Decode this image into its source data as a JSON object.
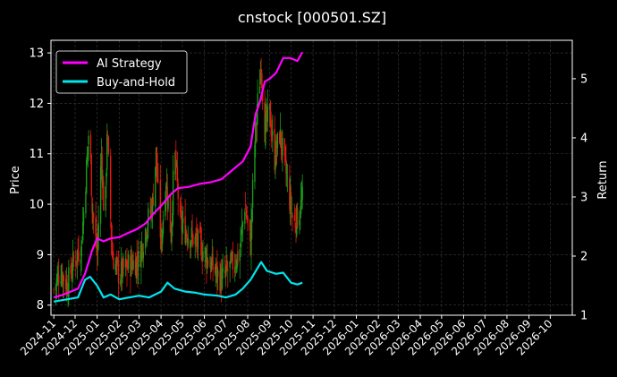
{
  "chart_data": {
    "type": "line",
    "title": "cnstock [000501.SZ]",
    "ylabel_left": "Price",
    "ylabel_right": "Return",
    "xlim": [
      "2024-10-28",
      "2026-11-01"
    ],
    "ylim_left": [
      7.8,
      13.25
    ],
    "ylim_right": [
      1.0,
      5.65
    ],
    "left_ticks": [
      8,
      9,
      10,
      11,
      12,
      13
    ],
    "right_ticks": [
      1,
      2,
      3,
      4,
      5
    ],
    "x_ticks": [
      "2024-11",
      "2024-12",
      "2025-01",
      "2025-02",
      "2025-03",
      "2025-04",
      "2025-05",
      "2025-06",
      "2025-07",
      "2025-08",
      "2025-09",
      "2025-10",
      "2025-11",
      "2025-12",
      "2026-01",
      "2026-02",
      "2026-03",
      "2026-04",
      "2026-05",
      "2026-06",
      "2026-07",
      "2026-08",
      "2026-09",
      "2026-10"
    ],
    "grid": true,
    "legend_position": "top-left",
    "colors": {
      "background": "#000000",
      "ai_strategy": "#ff00ff",
      "buy_and_hold": "#00e5ee",
      "candle_up": "#1a9a1a",
      "candle_down": "#e01a10",
      "grid": "#3a3a3a"
    },
    "series": [
      {
        "name": "AI Strategy",
        "axis": "right",
        "points": [
          [
            "2024-11-01",
            1.3
          ],
          [
            "2024-11-15",
            1.35
          ],
          [
            "2024-11-25",
            1.4
          ],
          [
            "2024-12-05",
            1.45
          ],
          [
            "2024-12-15",
            1.7
          ],
          [
            "2024-12-25",
            2.1
          ],
          [
            "2025-01-01",
            2.3
          ],
          [
            "2025-01-10",
            2.25
          ],
          [
            "2025-01-20",
            2.3
          ],
          [
            "2025-02-01",
            2.32
          ],
          [
            "2025-02-15",
            2.4
          ],
          [
            "2025-02-25",
            2.45
          ],
          [
            "2025-03-10",
            2.55
          ],
          [
            "2025-03-20",
            2.7
          ],
          [
            "2025-04-01",
            2.85
          ],
          [
            "2025-04-15",
            3.05
          ],
          [
            "2025-04-25",
            3.15
          ],
          [
            "2025-05-10",
            3.17
          ],
          [
            "2025-05-25",
            3.22
          ],
          [
            "2025-06-10",
            3.25
          ],
          [
            "2025-06-25",
            3.3
          ],
          [
            "2025-07-05",
            3.4
          ],
          [
            "2025-07-15",
            3.5
          ],
          [
            "2025-07-25",
            3.6
          ],
          [
            "2025-08-05",
            3.85
          ],
          [
            "2025-08-12",
            4.4
          ],
          [
            "2025-08-18",
            4.6
          ],
          [
            "2025-08-25",
            4.95
          ],
          [
            "2025-09-01",
            5.0
          ],
          [
            "2025-09-10",
            5.1
          ],
          [
            "2025-09-20",
            5.35
          ],
          [
            "2025-09-30",
            5.35
          ],
          [
            "2025-10-10",
            5.3
          ],
          [
            "2025-10-17",
            5.45
          ]
        ]
      },
      {
        "name": "Buy-and-Hold",
        "axis": "right",
        "points": [
          [
            "2024-11-01",
            1.23
          ],
          [
            "2024-11-20",
            1.27
          ],
          [
            "2024-12-05",
            1.3
          ],
          [
            "2024-12-15",
            1.6
          ],
          [
            "2024-12-22",
            1.65
          ],
          [
            "2025-01-01",
            1.5
          ],
          [
            "2025-01-10",
            1.3
          ],
          [
            "2025-01-20",
            1.35
          ],
          [
            "2025-02-01",
            1.27
          ],
          [
            "2025-02-15",
            1.3
          ],
          [
            "2025-03-01",
            1.33
          ],
          [
            "2025-03-15",
            1.3
          ],
          [
            "2025-04-01",
            1.4
          ],
          [
            "2025-04-10",
            1.55
          ],
          [
            "2025-04-20",
            1.45
          ],
          [
            "2025-05-05",
            1.4
          ],
          [
            "2025-05-20",
            1.38
          ],
          [
            "2025-06-01",
            1.35
          ],
          [
            "2025-06-20",
            1.33
          ],
          [
            "2025-07-01",
            1.3
          ],
          [
            "2025-07-15",
            1.35
          ],
          [
            "2025-07-25",
            1.45
          ],
          [
            "2025-08-05",
            1.6
          ],
          [
            "2025-08-15",
            1.8
          ],
          [
            "2025-08-20",
            1.9
          ],
          [
            "2025-08-28",
            1.75
          ],
          [
            "2025-09-10",
            1.7
          ],
          [
            "2025-09-20",
            1.72
          ],
          [
            "2025-10-01",
            1.55
          ],
          [
            "2025-10-10",
            1.52
          ],
          [
            "2025-10-17",
            1.55
          ]
        ]
      }
    ],
    "candles": [
      [
        "2024-11-01",
        8.3
      ],
      [
        "2024-11-10",
        8.7
      ],
      [
        "2024-11-20",
        8.4
      ],
      [
        "2024-11-30",
        8.9
      ],
      [
        "2024-12-10",
        9.2
      ],
      [
        "2024-12-16",
        10.5
      ],
      [
        "2024-12-21",
        11.6
      ],
      [
        "2024-12-25",
        10.0
      ],
      [
        "2025-01-01",
        9.0
      ],
      [
        "2025-01-07",
        11.0
      ],
      [
        "2025-01-12",
        9.4
      ],
      [
        "2025-01-15",
        11.5
      ],
      [
        "2025-01-22",
        9.0
      ],
      [
        "2025-02-01",
        8.6
      ],
      [
        "2025-02-15",
        8.8
      ],
      [
        "2025-03-01",
        8.9
      ],
      [
        "2025-03-10",
        9.5
      ],
      [
        "2025-03-20",
        10.0
      ],
      [
        "2025-03-25",
        11.0
      ],
      [
        "2025-04-01",
        9.2
      ],
      [
        "2025-04-08",
        10.5
      ],
      [
        "2025-04-15",
        9.4
      ],
      [
        "2025-04-20",
        11.1
      ],
      [
        "2025-04-28",
        9.6
      ],
      [
        "2025-05-10",
        9.4
      ],
      [
        "2025-05-25",
        9.2
      ],
      [
        "2025-06-10",
        8.8
      ],
      [
        "2025-06-25",
        8.5
      ],
      [
        "2025-07-10",
        8.8
      ],
      [
        "2025-07-20",
        9.0
      ],
      [
        "2025-07-28",
        10.0
      ],
      [
        "2025-08-05",
        9.2
      ],
      [
        "2025-08-10",
        11.0
      ],
      [
        "2025-08-15",
        12.0
      ],
      [
        "2025-08-20",
        12.8
      ],
      [
        "2025-08-25",
        11.5
      ],
      [
        "2025-09-01",
        11.8
      ],
      [
        "2025-09-08",
        10.9
      ],
      [
        "2025-09-15",
        11.4
      ],
      [
        "2025-09-22",
        10.8
      ],
      [
        "2025-09-30",
        10.0
      ],
      [
        "2025-10-05",
        9.6
      ],
      [
        "2025-10-12",
        9.8
      ],
      [
        "2025-10-17",
        10.1
      ]
    ]
  }
}
